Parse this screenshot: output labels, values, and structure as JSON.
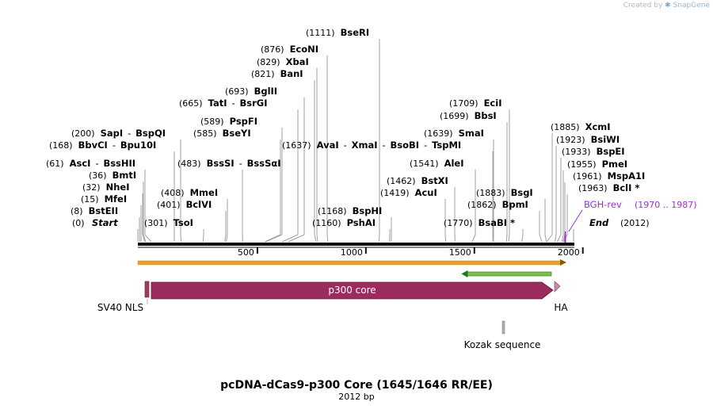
{
  "credit": {
    "prefix": "Created by",
    "brand": "SnapGene",
    "logo_icon": "snapgene-logo-icon"
  },
  "map": {
    "title": "pcDNA-dCas9-p300 Core (1645/1646 RR/EE)",
    "length_label": "2012 bp",
    "length": 2012,
    "start_label": "Start",
    "start_pos_label": "(0)",
    "end_label": "End",
    "end_pos_label": "(2012)",
    "ticks": [
      {
        "value": 500,
        "label": "500"
      },
      {
        "value": 1000,
        "label": "1000"
      },
      {
        "value": 1500,
        "label": "1500"
      },
      {
        "value": 2000,
        "label": "2000"
      }
    ]
  },
  "sites": [
    {
      "id": "bsteii",
      "pos": 8,
      "pos_label": "(8)",
      "names": [
        "BstEII"
      ],
      "star": false
    },
    {
      "id": "mfei",
      "pos": 15,
      "pos_label": "(15)",
      "names": [
        "MfeI"
      ],
      "star": false
    },
    {
      "id": "nhei",
      "pos": 32,
      "pos_label": "(32)",
      "names": [
        "NheI"
      ],
      "star": false
    },
    {
      "id": "bmti",
      "pos": 36,
      "pos_label": "(36)",
      "names": [
        "BmtI"
      ],
      "star": false
    },
    {
      "id": "asci",
      "pos": 61,
      "pos_label": "(61)",
      "names": [
        "AscI",
        "BssHII"
      ],
      "star": false
    },
    {
      "id": "bbvci",
      "pos": 168,
      "pos_label": "(168)",
      "names": [
        "BbvCI",
        "Bpu10I"
      ],
      "star": false
    },
    {
      "id": "sapi",
      "pos": 200,
      "pos_label": "(200)",
      "names": [
        "SapI",
        "BspQI"
      ],
      "star": false
    },
    {
      "id": "tsoi",
      "pos": 301,
      "pos_label": "(301)",
      "names": [
        "TsoI"
      ],
      "star": false
    },
    {
      "id": "bclvi",
      "pos": 401,
      "pos_label": "(401)",
      "names": [
        "BclVI"
      ],
      "star": false
    },
    {
      "id": "mmei",
      "pos": 408,
      "pos_label": "(408)",
      "names": [
        "MmeI"
      ],
      "star": false
    },
    {
      "id": "bsssi",
      "pos": 483,
      "pos_label": "(483)",
      "names": [
        "BssSI",
        "BssSαI"
      ],
      "star": false
    },
    {
      "id": "bseyi",
      "pos": 585,
      "pos_label": "(585)",
      "names": [
        "BseYI"
      ],
      "star": false
    },
    {
      "id": "pspfi",
      "pos": 589,
      "pos_label": "(589)",
      "names": [
        "PspFI"
      ],
      "star": false
    },
    {
      "id": "tati",
      "pos": 665,
      "pos_label": "(665)",
      "names": [
        "TatI",
        "BsrGI"
      ],
      "star": false
    },
    {
      "id": "bglii",
      "pos": 693,
      "pos_label": "(693)",
      "names": [
        "BglII"
      ],
      "star": false
    },
    {
      "id": "bani",
      "pos": 821,
      "pos_label": "(821)",
      "names": [
        "BanI"
      ],
      "star": false
    },
    {
      "id": "xbai",
      "pos": 829,
      "pos_label": "(829)",
      "names": [
        "XbaI"
      ],
      "star": false
    },
    {
      "id": "econi",
      "pos": 876,
      "pos_label": "(876)",
      "names": [
        "EcoNI"
      ],
      "star": false
    },
    {
      "id": "bseri",
      "pos": 1111,
      "pos_label": "(1111)",
      "names": [
        "BseRI"
      ],
      "star": false
    },
    {
      "id": "pshai",
      "pos": 1160,
      "pos_label": "(1160)",
      "names": [
        "PshAI"
      ],
      "star": false
    },
    {
      "id": "bsphi",
      "pos": 1168,
      "pos_label": "(1168)",
      "names": [
        "BspHI"
      ],
      "star": false
    },
    {
      "id": "acui",
      "pos": 1419,
      "pos_label": "(1419)",
      "names": [
        "AcuI"
      ],
      "star": false
    },
    {
      "id": "bstxi",
      "pos": 1462,
      "pos_label": "(1462)",
      "names": [
        "BstXI"
      ],
      "star": false
    },
    {
      "id": "alei",
      "pos": 1541,
      "pos_label": "(1541)",
      "names": [
        "AleI"
      ],
      "star": false
    },
    {
      "id": "avai",
      "pos": 1637,
      "pos_label": "(1637)",
      "names": [
        "AvaI",
        "XmaI",
        "BsoBI",
        "TspMI"
      ],
      "star": false
    },
    {
      "id": "smai",
      "pos": 1639,
      "pos_label": "(1639)",
      "names": [
        "SmaI"
      ],
      "star": false
    },
    {
      "id": "bbsi",
      "pos": 1699,
      "pos_label": "(1699)",
      "names": [
        "BbsI"
      ],
      "star": false
    },
    {
      "id": "ecii",
      "pos": 1709,
      "pos_label": "(1709)",
      "names": [
        "EciI"
      ],
      "star": false
    },
    {
      "id": "bsabi",
      "pos": 1770,
      "pos_label": "(1770)",
      "names": [
        "BsaBI"
      ],
      "star": true
    },
    {
      "id": "bpmi",
      "pos": 1862,
      "pos_label": "(1862)",
      "names": [
        "BpmI"
      ],
      "star": false
    },
    {
      "id": "bsgi",
      "pos": 1883,
      "pos_label": "(1883)",
      "names": [
        "BsgI"
      ],
      "star": false
    },
    {
      "id": "xcmi",
      "pos": 1885,
      "pos_label": "(1885)",
      "names": [
        "XcmI"
      ],
      "star": false
    },
    {
      "id": "bsiwi",
      "pos": 1923,
      "pos_label": "(1923)",
      "names": [
        "BsiWI"
      ],
      "star": false
    },
    {
      "id": "bspei",
      "pos": 1933,
      "pos_label": "(1933)",
      "names": [
        "BspEI"
      ],
      "star": false
    },
    {
      "id": "pmei",
      "pos": 1955,
      "pos_label": "(1955)",
      "names": [
        "PmeI"
      ],
      "star": false
    },
    {
      "id": "mspa1i",
      "pos": 1961,
      "pos_label": "(1961)",
      "names": [
        "MspA1I"
      ],
      "star": false
    },
    {
      "id": "bcli",
      "pos": 1963,
      "pos_label": "(1963)",
      "names": [
        "BclI"
      ],
      "star": true
    }
  ],
  "primer": {
    "name": "BGH-rev",
    "range_label": "(1970 .. 1987)",
    "start": 1970,
    "end": 1987,
    "color": "#9b30d0"
  },
  "orf_forward": {
    "start": 0,
    "end": 2012,
    "color": "#f0a020"
  },
  "orf_reverse": {
    "start": 1484,
    "end": 1950,
    "color": "#1a7a1a"
  },
  "features": [
    {
      "id": "sv40-nls",
      "name": "SV40 NLS",
      "start": 0,
      "end": 21,
      "kind": "box",
      "color": "#a33a62"
    },
    {
      "id": "p300-core",
      "name": "p300 core",
      "start": 21,
      "end": 1937,
      "kind": "arrow",
      "color": "#9b2d5e"
    },
    {
      "id": "ha",
      "name": "HA",
      "start": 1937,
      "end": 1964,
      "kind": "arrowhead",
      "color": "#c98aa8"
    },
    {
      "id": "kozak",
      "name": "Kozak sequence",
      "start": 1690,
      "end": 1698,
      "kind": "box",
      "color": "#b0b0b0"
    }
  ]
}
